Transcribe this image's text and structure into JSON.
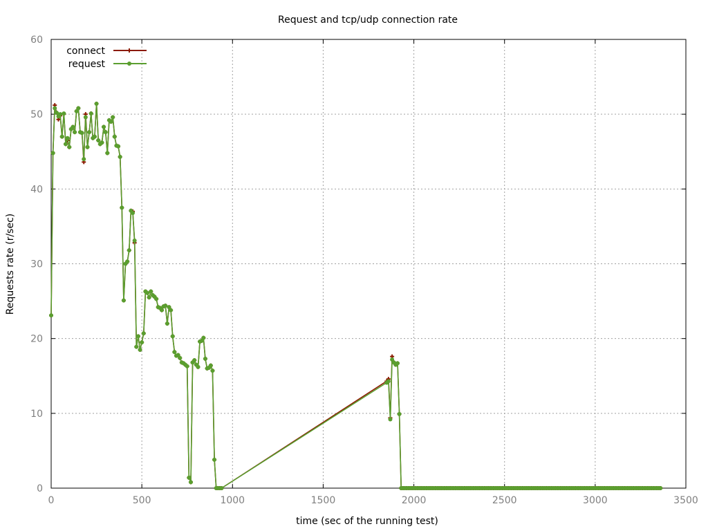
{
  "chart_data": {
    "type": "line",
    "title": "Request and tcp/udp connection rate",
    "xlabel": "time (sec of the running test)",
    "ylabel": "Requests rate (r/sec)",
    "xlim": [
      0,
      3500
    ],
    "ylim": [
      0,
      60
    ],
    "xticks": [
      "0",
      "500",
      "1000",
      "1500",
      "2000",
      "2500",
      "3000",
      "3500"
    ],
    "yticks": [
      "0",
      "10",
      "20",
      "30",
      "40",
      "50",
      "60"
    ],
    "grid": true,
    "legend_position": "top-left",
    "colors": {
      "connect": "#8b1a00",
      "request": "#5a9e2f"
    },
    "series": [
      {
        "name": "connect",
        "x": [
          0,
          10,
          20,
          30,
          40,
          50,
          60,
          70,
          80,
          90,
          100,
          110,
          120,
          130,
          140,
          150,
          160,
          170,
          180,
          190,
          200,
          210,
          220,
          230,
          240,
          250,
          260,
          270,
          280,
          290,
          300,
          310,
          320,
          330,
          340,
          350,
          360,
          370,
          380,
          390,
          400,
          410,
          420,
          430,
          440,
          450,
          460,
          470,
          480,
          490,
          500,
          510,
          520,
          530,
          540,
          550,
          560,
          570,
          580,
          590,
          600,
          610,
          620,
          630,
          640,
          650,
          660,
          670,
          680,
          690,
          700,
          710,
          720,
          730,
          740,
          750,
          760,
          770,
          780,
          790,
          800,
          810,
          820,
          830,
          840,
          850,
          860,
          870,
          880,
          890,
          900,
          910,
          920,
          930,
          940,
          1850,
          1860,
          1870,
          1880,
          1890,
          1900,
          1910,
          1920,
          1930,
          1940,
          3360
        ],
        "values": [
          23.1,
          44.8,
          51.2,
          50.2,
          49.3,
          49.8,
          47.0,
          50.0,
          46.0,
          46.5,
          45.6,
          48.0,
          48.3,
          47.6,
          50.4,
          50.8,
          47.6,
          47.5,
          43.6,
          50.0,
          45.6,
          47.6,
          50.1,
          46.8,
          47.0,
          51.4,
          46.5,
          46.0,
          46.2,
          48.3,
          47.6,
          44.8,
          49.2,
          49.0,
          49.6,
          47.0,
          45.8,
          45.7,
          44.3,
          37.5,
          25.1,
          30.0,
          30.3,
          31.8,
          37.1,
          37.0,
          32.8,
          18.9,
          20.3,
          18.5,
          19.5,
          20.7,
          26.3,
          26.1,
          25.5,
          26.3,
          25.8,
          25.6,
          25.3,
          24.2,
          24.1,
          23.8,
          24.3,
          24.4,
          22.0,
          24.2,
          23.8,
          20.3,
          18.2,
          17.7,
          17.8,
          17.4,
          16.8,
          16.7,
          16.5,
          16.3,
          1.4,
          0.8,
          16.8,
          17.1,
          16.5,
          16.2,
          19.6,
          19.7,
          20.1,
          17.3,
          16.0,
          16.1,
          16.4,
          15.7,
          3.8,
          0.0,
          0.0,
          0.0,
          0.0,
          14.3,
          14.6,
          9.4,
          17.6,
          16.8,
          16.5,
          16.7,
          9.9,
          0.0,
          0.0,
          0.0
        ]
      },
      {
        "name": "request",
        "x": [
          0,
          10,
          20,
          30,
          40,
          50,
          60,
          70,
          80,
          90,
          100,
          110,
          120,
          130,
          140,
          150,
          160,
          170,
          180,
          190,
          200,
          210,
          220,
          230,
          240,
          250,
          260,
          270,
          280,
          290,
          300,
          310,
          320,
          330,
          340,
          350,
          360,
          370,
          380,
          390,
          400,
          410,
          420,
          430,
          440,
          450,
          460,
          470,
          480,
          490,
          500,
          510,
          520,
          530,
          540,
          550,
          560,
          570,
          580,
          590,
          600,
          610,
          620,
          630,
          640,
          650,
          660,
          670,
          680,
          690,
          700,
          710,
          720,
          730,
          740,
          750,
          760,
          770,
          780,
          790,
          800,
          810,
          820,
          830,
          840,
          850,
          860,
          870,
          880,
          890,
          900,
          910,
          920,
          930,
          940,
          1850,
          1860,
          1870,
          1880,
          1890,
          1900,
          1910,
          1920,
          1930,
          1940,
          3360
        ],
        "values": [
          23.1,
          44.8,
          50.8,
          50.2,
          49.7,
          50.0,
          47.0,
          50.1,
          46.0,
          46.8,
          45.6,
          48.0,
          48.3,
          47.6,
          50.4,
          50.8,
          47.6,
          47.5,
          44.0,
          49.6,
          45.6,
          47.6,
          50.1,
          46.8,
          47.0,
          51.4,
          46.5,
          46.0,
          46.2,
          48.3,
          47.6,
          44.8,
          49.2,
          49.0,
          49.6,
          47.0,
          45.8,
          45.7,
          44.3,
          37.5,
          25.1,
          30.0,
          30.3,
          31.8,
          37.1,
          36.8,
          33.1,
          18.9,
          20.3,
          18.5,
          19.5,
          20.7,
          26.3,
          26.1,
          25.5,
          26.3,
          25.8,
          25.6,
          25.3,
          24.2,
          24.1,
          23.8,
          24.3,
          24.4,
          22.0,
          24.2,
          23.8,
          20.3,
          18.2,
          17.7,
          17.8,
          17.4,
          16.8,
          16.7,
          16.5,
          16.3,
          1.4,
          0.8,
          16.8,
          17.1,
          16.5,
          16.2,
          19.6,
          19.7,
          20.1,
          17.3,
          16.0,
          16.1,
          16.4,
          15.7,
          3.8,
          0.0,
          0.0,
          0.0,
          0.0,
          14.1,
          14.3,
          9.2,
          17.2,
          16.8,
          16.5,
          16.7,
          9.9,
          0.0,
          0.0,
          0.0
        ]
      }
    ],
    "zero_marker_interval": 10
  }
}
